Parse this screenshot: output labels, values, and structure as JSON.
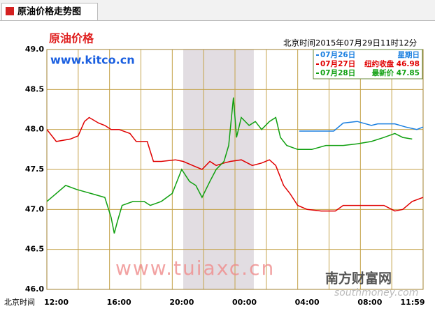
{
  "header": {
    "tab_title": "原油价格走势图"
  },
  "chart_data": {
    "type": "line",
    "title": "原油价格",
    "source": "www.kitco.cn",
    "timestamp": "北京时间2015年07月29日11时12分",
    "x_label": "北京时间",
    "watermark": "www.tuiaxc.cn",
    "logo": "南方财富网",
    "logo_sub": "southmoney.com",
    "xlim": [
      0,
      24
    ],
    "ylim": [
      46.0,
      49.0
    ],
    "xticks": [
      {
        "value": 0,
        "label": "12:00"
      },
      {
        "value": 4,
        "label": "16:00"
      },
      {
        "value": 8,
        "label": "20:00"
      },
      {
        "value": 12,
        "label": "00:00"
      },
      {
        "value": 16,
        "label": "04:00"
      },
      {
        "value": 20,
        "label": "08:00"
      },
      {
        "value": 23.98,
        "label": "11:59"
      }
    ],
    "xgrid": [
      2,
      6,
      10,
      14,
      18,
      22
    ],
    "yticks": [
      {
        "value": 46.0,
        "label": "46.0"
      },
      46.5,
      {
        "value": 47.0,
        "label": "47.0"
      },
      47.5,
      {
        "value": 48.0,
        "label": "48.0"
      },
      48.5,
      {
        "value": 49.0,
        "label": "49.0"
      }
    ],
    "shaded": [
      8.7,
      13.2
    ],
    "grid": true,
    "legend_position": "top-right",
    "series": [
      {
        "name": "07月26日",
        "note": "星期日",
        "color": "#1a7fe0",
        "x": [
          16.1,
          18.3,
          18.9,
          19.8,
          20.7,
          21.1,
          22.2,
          22.9,
          23.6,
          24.0
        ],
        "values": [
          47.98,
          47.98,
          48.08,
          48.1,
          48.05,
          48.07,
          48.07,
          48.03,
          48.0,
          48.03
        ]
      },
      {
        "name": "07月27日",
        "note": "纽约收盘 46.98",
        "color": "#e00000",
        "x": [
          0,
          0.6,
          1.5,
          2.0,
          2.4,
          2.7,
          3.3,
          3.7,
          4.1,
          4.6,
          5.3,
          5.7,
          6.4,
          6.8,
          7.3,
          8.2,
          8.7,
          9.3,
          9.9,
          10.4,
          10.8,
          11.3,
          11.7,
          12.4,
          13.1,
          13.7,
          14.2,
          14.6,
          15.1,
          15.5,
          16.0,
          16.6,
          17.5,
          18.4,
          18.9,
          19.8,
          20.7,
          21.5,
          22.2,
          22.7,
          23.3,
          24.0
        ],
        "values": [
          48.0,
          47.85,
          47.88,
          47.92,
          48.1,
          48.15,
          48.08,
          48.05,
          48.0,
          48.0,
          47.95,
          47.85,
          47.85,
          47.6,
          47.6,
          47.62,
          47.6,
          47.55,
          47.5,
          47.6,
          47.55,
          47.58,
          47.6,
          47.62,
          47.55,
          47.58,
          47.62,
          47.55,
          47.3,
          47.2,
          47.05,
          47.0,
          46.98,
          46.98,
          47.05,
          47.05,
          47.05,
          47.05,
          46.98,
          47.0,
          47.1,
          47.15
        ]
      },
      {
        "name": "07月28日",
        "note": "最新价 47.85",
        "color": "#10a010",
        "x": [
          0,
          0.6,
          1.2,
          1.9,
          2.8,
          3.7,
          4.1,
          4.3,
          4.5,
          4.8,
          5.5,
          6.2,
          6.6,
          7.3,
          8.0,
          8.6,
          9.1,
          9.5,
          9.9,
          10.4,
          10.8,
          11.3,
          11.6,
          11.9,
          12.1,
          12.4,
          12.9,
          13.3,
          13.7,
          14.2,
          14.6,
          14.9,
          15.3,
          16.0,
          16.9,
          17.8,
          18.9,
          19.8,
          20.7,
          21.5,
          22.2,
          22.7,
          23.3
        ],
        "values": [
          47.1,
          47.2,
          47.3,
          47.25,
          47.2,
          47.15,
          46.9,
          46.7,
          46.85,
          47.05,
          47.1,
          47.1,
          47.05,
          47.1,
          47.2,
          47.5,
          47.35,
          47.3,
          47.15,
          47.35,
          47.5,
          47.6,
          47.8,
          48.4,
          47.9,
          48.15,
          48.05,
          48.1,
          48.0,
          48.1,
          48.15,
          47.9,
          47.8,
          47.75,
          47.75,
          47.8,
          47.8,
          47.82,
          47.85,
          47.9,
          47.95,
          47.9,
          47.88
        ]
      }
    ]
  }
}
